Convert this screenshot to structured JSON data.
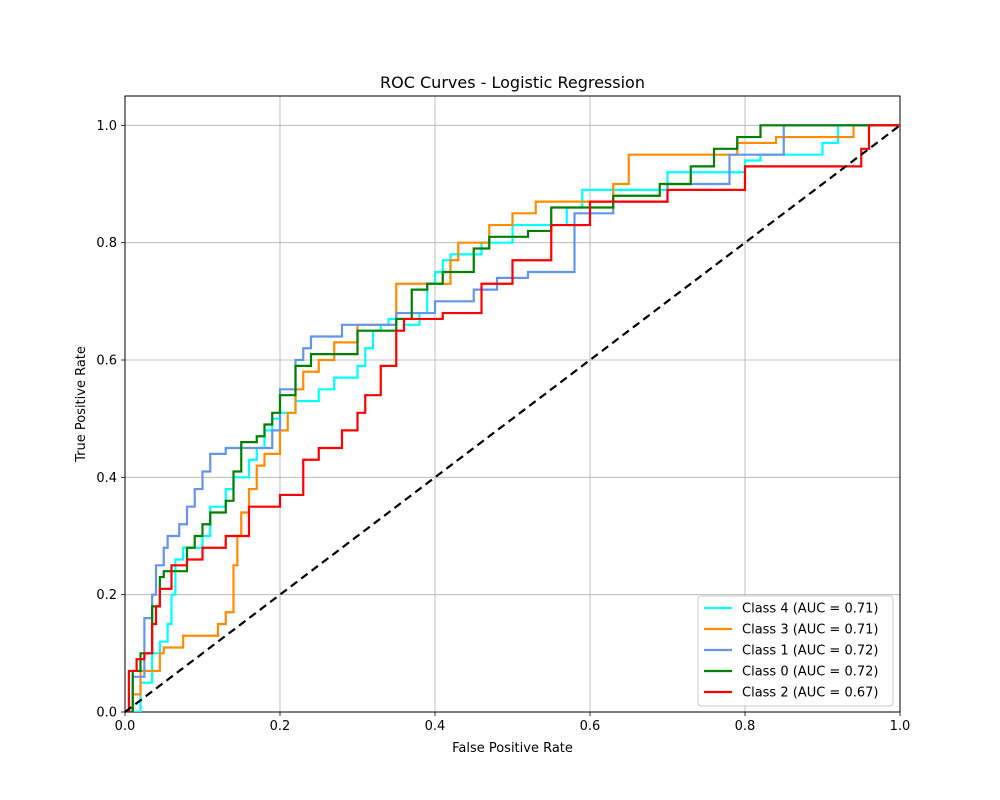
{
  "chart_data": {
    "type": "line",
    "title": "ROC Curves - Logistic Regression",
    "xlabel": "False Positive Rate",
    "ylabel": "True Positive Rate",
    "xlim": [
      0.0,
      1.0
    ],
    "ylim": [
      0.0,
      1.05
    ],
    "xticks": [
      "0.0",
      "0.2",
      "0.4",
      "0.6",
      "0.8",
      "1.0"
    ],
    "yticks": [
      "0.0",
      "0.2",
      "0.4",
      "0.6",
      "0.8",
      "1.0"
    ],
    "grid": true,
    "legend_position": "lower-right",
    "diagonal_reference": {
      "x": [
        0,
        1
      ],
      "y": [
        0,
        1
      ],
      "color": "#000000",
      "style": "dashed"
    },
    "series": [
      {
        "name": "Class 4 (AUC = 0.71)",
        "color": "#00ffff",
        "x": [
          0.0,
          0.02,
          0.02,
          0.035,
          0.035,
          0.045,
          0.045,
          0.055,
          0.055,
          0.06,
          0.06,
          0.065,
          0.065,
          0.075,
          0.075,
          0.1,
          0.1,
          0.11,
          0.11,
          0.13,
          0.13,
          0.14,
          0.14,
          0.16,
          0.16,
          0.17,
          0.17,
          0.18,
          0.18,
          0.19,
          0.19,
          0.2,
          0.2,
          0.22,
          0.22,
          0.25,
          0.25,
          0.27,
          0.27,
          0.3,
          0.3,
          0.31,
          0.31,
          0.32,
          0.32,
          0.33,
          0.33,
          0.34,
          0.34,
          0.36,
          0.36,
          0.38,
          0.38,
          0.39,
          0.39,
          0.4,
          0.4,
          0.41,
          0.41,
          0.42,
          0.42,
          0.46,
          0.46,
          0.5,
          0.5,
          0.57,
          0.57,
          0.59,
          0.59,
          0.7,
          0.7,
          0.8,
          0.8,
          0.82,
          0.82,
          0.9,
          0.9,
          0.92,
          0.92,
          1.0
        ],
        "y": [
          0.0,
          0.0,
          0.05,
          0.05,
          0.1,
          0.1,
          0.12,
          0.12,
          0.15,
          0.15,
          0.2,
          0.2,
          0.26,
          0.26,
          0.28,
          0.28,
          0.3,
          0.3,
          0.35,
          0.35,
          0.38,
          0.38,
          0.4,
          0.4,
          0.43,
          0.43,
          0.45,
          0.45,
          0.48,
          0.48,
          0.5,
          0.5,
          0.51,
          0.51,
          0.53,
          0.53,
          0.55,
          0.55,
          0.57,
          0.57,
          0.59,
          0.59,
          0.62,
          0.62,
          0.65,
          0.65,
          0.66,
          0.66,
          0.67,
          0.67,
          0.66,
          0.66,
          0.68,
          0.68,
          0.73,
          0.73,
          0.75,
          0.75,
          0.77,
          0.77,
          0.78,
          0.78,
          0.8,
          0.8,
          0.83,
          0.83,
          0.86,
          0.86,
          0.89,
          0.89,
          0.92,
          0.92,
          0.94,
          0.94,
          0.95,
          0.95,
          0.97,
          0.97,
          1.0,
          1.0
        ]
      },
      {
        "name": "Class 3 (AUC = 0.71)",
        "color": "#ff8c00",
        "x": [
          0.0,
          0.01,
          0.01,
          0.02,
          0.02,
          0.045,
          0.045,
          0.05,
          0.05,
          0.075,
          0.075,
          0.12,
          0.12,
          0.13,
          0.13,
          0.14,
          0.14,
          0.145,
          0.145,
          0.15,
          0.15,
          0.16,
          0.16,
          0.17,
          0.17,
          0.18,
          0.18,
          0.2,
          0.2,
          0.21,
          0.21,
          0.22,
          0.22,
          0.23,
          0.23,
          0.25,
          0.25,
          0.27,
          0.27,
          0.3,
          0.3,
          0.35,
          0.35,
          0.42,
          0.42,
          0.43,
          0.43,
          0.47,
          0.47,
          0.5,
          0.5,
          0.53,
          0.53,
          0.54,
          0.54,
          0.63,
          0.63,
          0.65,
          0.65,
          0.66,
          0.66,
          0.79,
          0.79,
          0.84,
          0.84,
          0.94,
          0.94,
          1.0
        ],
        "y": [
          0.0,
          0.0,
          0.03,
          0.03,
          0.07,
          0.07,
          0.1,
          0.1,
          0.11,
          0.11,
          0.13,
          0.13,
          0.15,
          0.15,
          0.17,
          0.17,
          0.25,
          0.25,
          0.3,
          0.3,
          0.34,
          0.34,
          0.38,
          0.38,
          0.42,
          0.42,
          0.44,
          0.44,
          0.48,
          0.48,
          0.51,
          0.51,
          0.55,
          0.55,
          0.58,
          0.58,
          0.6,
          0.6,
          0.63,
          0.63,
          0.66,
          0.66,
          0.73,
          0.73,
          0.77,
          0.77,
          0.8,
          0.8,
          0.83,
          0.83,
          0.85,
          0.85,
          0.87,
          0.87,
          0.87,
          0.87,
          0.9,
          0.9,
          0.95,
          0.95,
          0.95,
          0.95,
          0.97,
          0.97,
          0.98,
          0.98,
          1.0,
          1.0
        ]
      },
      {
        "name": "Class 1 (AUC = 0.72)",
        "color": "#6495ed",
        "x": [
          0.0,
          0.01,
          0.01,
          0.025,
          0.025,
          0.035,
          0.035,
          0.04,
          0.04,
          0.05,
          0.05,
          0.055,
          0.055,
          0.07,
          0.07,
          0.08,
          0.08,
          0.09,
          0.09,
          0.1,
          0.1,
          0.11,
          0.11,
          0.13,
          0.13,
          0.19,
          0.19,
          0.2,
          0.2,
          0.22,
          0.22,
          0.23,
          0.23,
          0.24,
          0.24,
          0.25,
          0.25,
          0.28,
          0.28,
          0.35,
          0.35,
          0.4,
          0.4,
          0.45,
          0.45,
          0.48,
          0.48,
          0.52,
          0.52,
          0.55,
          0.55,
          0.58,
          0.58,
          0.63,
          0.63,
          0.7,
          0.7,
          0.78,
          0.78,
          0.85,
          0.85,
          0.88,
          0.88,
          1.0
        ],
        "y": [
          0.0,
          0.0,
          0.06,
          0.06,
          0.16,
          0.16,
          0.2,
          0.2,
          0.25,
          0.25,
          0.28,
          0.28,
          0.3,
          0.3,
          0.32,
          0.32,
          0.35,
          0.35,
          0.38,
          0.38,
          0.41,
          0.41,
          0.44,
          0.44,
          0.45,
          0.45,
          0.48,
          0.48,
          0.55,
          0.55,
          0.6,
          0.6,
          0.62,
          0.62,
          0.64,
          0.64,
          0.64,
          0.64,
          0.66,
          0.66,
          0.68,
          0.68,
          0.7,
          0.7,
          0.72,
          0.72,
          0.74,
          0.74,
          0.75,
          0.75,
          0.75,
          0.75,
          0.85,
          0.85,
          0.87,
          0.87,
          0.9,
          0.9,
          0.95,
          0.95,
          1.0,
          1.0,
          1.0,
          1.0
        ]
      },
      {
        "name": "Class 0 (AUC = 0.72)",
        "color": "#008000",
        "x": [
          0.0,
          0.01,
          0.01,
          0.02,
          0.02,
          0.035,
          0.035,
          0.045,
          0.045,
          0.05,
          0.05,
          0.08,
          0.08,
          0.09,
          0.09,
          0.1,
          0.1,
          0.11,
          0.11,
          0.13,
          0.13,
          0.14,
          0.14,
          0.15,
          0.15,
          0.17,
          0.17,
          0.18,
          0.18,
          0.19,
          0.19,
          0.2,
          0.2,
          0.22,
          0.22,
          0.24,
          0.24,
          0.3,
          0.3,
          0.35,
          0.35,
          0.37,
          0.37,
          0.39,
          0.39,
          0.41,
          0.41,
          0.45,
          0.45,
          0.47,
          0.47,
          0.52,
          0.52,
          0.55,
          0.55,
          0.63,
          0.63,
          0.69,
          0.69,
          0.73,
          0.73,
          0.76,
          0.76,
          0.79,
          0.79,
          0.82,
          0.82,
          0.86,
          0.86,
          1.0
        ],
        "y": [
          0.0,
          0.0,
          0.07,
          0.07,
          0.1,
          0.1,
          0.18,
          0.18,
          0.23,
          0.23,
          0.24,
          0.24,
          0.28,
          0.28,
          0.3,
          0.3,
          0.32,
          0.32,
          0.34,
          0.34,
          0.36,
          0.36,
          0.41,
          0.41,
          0.46,
          0.46,
          0.47,
          0.47,
          0.49,
          0.49,
          0.51,
          0.51,
          0.54,
          0.54,
          0.59,
          0.59,
          0.61,
          0.61,
          0.65,
          0.65,
          0.67,
          0.67,
          0.72,
          0.72,
          0.73,
          0.73,
          0.75,
          0.75,
          0.79,
          0.79,
          0.81,
          0.81,
          0.82,
          0.82,
          0.86,
          0.86,
          0.88,
          0.88,
          0.9,
          0.9,
          0.93,
          0.93,
          0.96,
          0.96,
          0.98,
          0.98,
          1.0,
          1.0,
          1.0,
          1.0
        ]
      },
      {
        "name": "Class 2 (AUC = 0.67)",
        "color": "#ff0000",
        "x": [
          0.0,
          0.005,
          0.005,
          0.015,
          0.015,
          0.025,
          0.025,
          0.035,
          0.035,
          0.04,
          0.04,
          0.045,
          0.045,
          0.06,
          0.06,
          0.08,
          0.08,
          0.1,
          0.1,
          0.13,
          0.13,
          0.16,
          0.16,
          0.2,
          0.2,
          0.23,
          0.23,
          0.25,
          0.25,
          0.28,
          0.28,
          0.3,
          0.3,
          0.31,
          0.31,
          0.33,
          0.33,
          0.35,
          0.35,
          0.36,
          0.36,
          0.41,
          0.41,
          0.46,
          0.46,
          0.5,
          0.5,
          0.55,
          0.55,
          0.6,
          0.6,
          0.7,
          0.7,
          0.8,
          0.8,
          0.95,
          0.95,
          0.96,
          0.96,
          1.0
        ],
        "y": [
          0.0,
          0.0,
          0.07,
          0.07,
          0.09,
          0.09,
          0.1,
          0.1,
          0.15,
          0.15,
          0.18,
          0.18,
          0.21,
          0.21,
          0.25,
          0.25,
          0.26,
          0.26,
          0.28,
          0.28,
          0.3,
          0.3,
          0.35,
          0.35,
          0.37,
          0.37,
          0.43,
          0.43,
          0.45,
          0.45,
          0.48,
          0.48,
          0.51,
          0.51,
          0.54,
          0.54,
          0.59,
          0.59,
          0.65,
          0.65,
          0.67,
          0.67,
          0.68,
          0.68,
          0.73,
          0.73,
          0.77,
          0.77,
          0.83,
          0.83,
          0.87,
          0.87,
          0.89,
          0.89,
          0.93,
          0.93,
          0.96,
          0.96,
          1.0,
          1.0
        ]
      }
    ]
  }
}
